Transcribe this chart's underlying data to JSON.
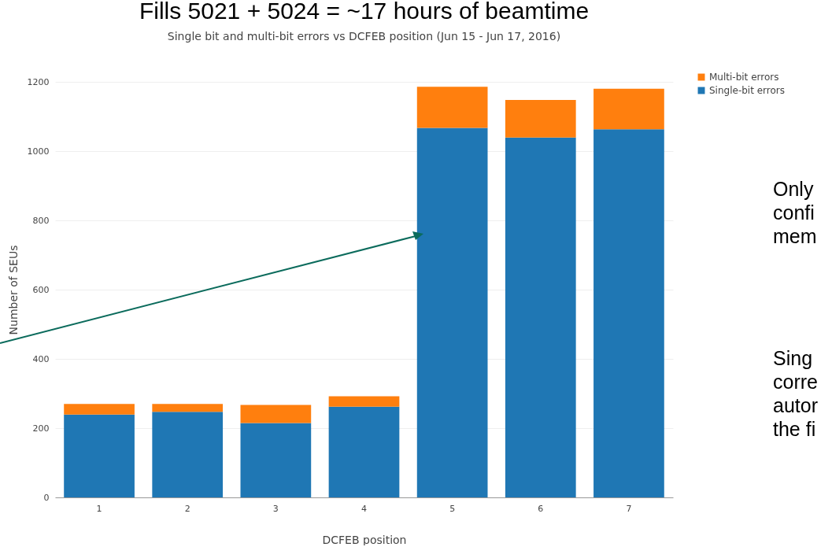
{
  "chart_data": {
    "type": "bar",
    "title": "Fills 5021 + 5024 = ~17 hours of beamtime",
    "subtitle": "Single bit and multi-bit errors vs DCFEB position (Jun 15 - Jun 17, 2016)",
    "xlabel": "DCFEB position",
    "ylabel": "Number of SEUs",
    "categories": [
      "1",
      "2",
      "3",
      "4",
      "5",
      "6",
      "7"
    ],
    "stacked": true,
    "series": [
      {
        "name": "Single-bit errors",
        "color": "#1f77b4",
        "values": [
          239,
          247,
          215,
          262,
          1067,
          1039,
          1063
        ]
      },
      {
        "name": "Multi-bit errors",
        "color": "#ff7f0e",
        "values": [
          31,
          23,
          52,
          30,
          119,
          109,
          117
        ]
      }
    ],
    "ylim": [
      0,
      1200
    ],
    "yticks": [
      0,
      200,
      400,
      600,
      800,
      1000,
      1200
    ],
    "grid": "y",
    "legend": "top right",
    "annotations": [
      "Only\nconfi\nmem",
      "Sing\ncorre\nautor\nthe fi"
    ]
  }
}
